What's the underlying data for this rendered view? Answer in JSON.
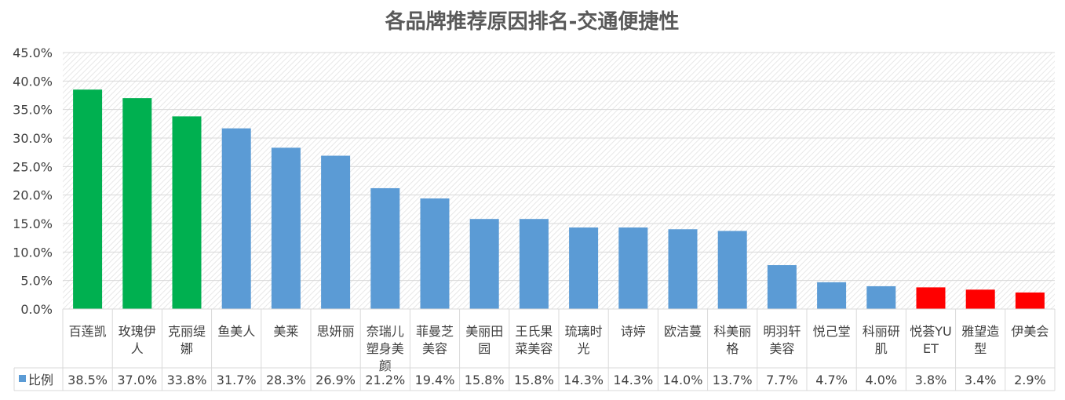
{
  "chart_data": {
    "type": "bar",
    "title": "各品牌推荐原因排名-交通便捷性",
    "xlabel": "",
    "ylabel": "",
    "ylim": [
      0,
      45
    ],
    "yticks": [
      "0.0%",
      "5.0%",
      "10.0%",
      "15.0%",
      "20.0%",
      "25.0%",
      "30.0%",
      "35.0%",
      "40.0%",
      "45.0%"
    ],
    "grid": true,
    "legend_placement": "table-left",
    "series": [
      {
        "name": "比例",
        "color": "#5B9BD5",
        "values": [
          38.5,
          37.0,
          33.8,
          31.7,
          28.3,
          26.9,
          21.2,
          19.4,
          15.8,
          15.8,
          14.3,
          14.3,
          14.0,
          13.7,
          7.7,
          4.7,
          4.0,
          3.8,
          3.4,
          2.9
        ],
        "value_labels": [
          "38.5%",
          "37.0%",
          "33.8%",
          "31.7%",
          "28.3%",
          "26.9%",
          "21.2%",
          "19.4%",
          "15.8%",
          "15.8%",
          "14.3%",
          "14.3%",
          "14.0%",
          "13.7%",
          "7.7%",
          "4.7%",
          "4.0%",
          "3.8%",
          "3.4%",
          "2.9%"
        ]
      }
    ],
    "categories": [
      [
        "百莲凯"
      ],
      [
        "玫瑰伊",
        "人"
      ],
      [
        "克丽缇",
        "娜"
      ],
      [
        "鱼美人"
      ],
      [
        "美莱"
      ],
      [
        "思妍丽"
      ],
      [
        "奈瑞儿",
        "塑身美",
        "颜"
      ],
      [
        "菲曼芝",
        "美容"
      ],
      [
        "美丽田",
        "园"
      ],
      [
        "王氏果",
        "菜美容"
      ],
      [
        "琉璃时",
        "光"
      ],
      [
        "诗婷"
      ],
      [
        "欧洁蔓"
      ],
      [
        "科美丽",
        "格"
      ],
      [
        "明羽轩",
        "美容"
      ],
      [
        "悦己堂"
      ],
      [
        "科丽研",
        "肌"
      ],
      [
        "悦荟YU",
        "ET"
      ],
      [
        "雅望造",
        "型"
      ],
      [
        "伊美会"
      ]
    ],
    "bar_colors": [
      "#00B050",
      "#00B050",
      "#00B050",
      "#5B9BD5",
      "#5B9BD5",
      "#5B9BD5",
      "#5B9BD5",
      "#5B9BD5",
      "#5B9BD5",
      "#5B9BD5",
      "#5B9BD5",
      "#5B9BD5",
      "#5B9BD5",
      "#5B9BD5",
      "#5B9BD5",
      "#5B9BD5",
      "#5B9BD5",
      "#FF0000",
      "#FF0000",
      "#FF0000"
    ],
    "legend_entry": "比例"
  }
}
